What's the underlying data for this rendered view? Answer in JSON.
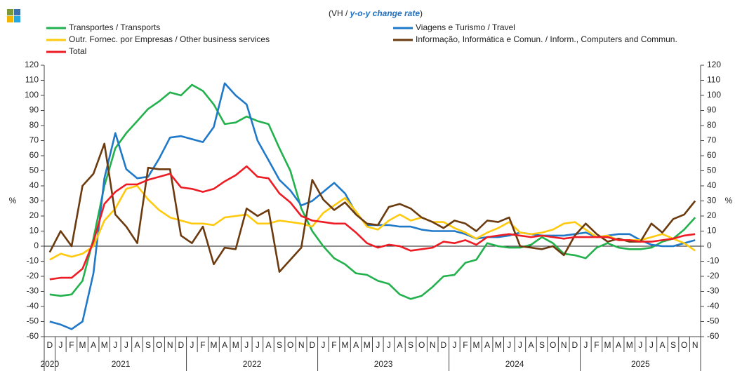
{
  "chart_data": {
    "type": "line",
    "subtitle": [
      "(VH / ",
      "y-o-y change rate",
      ")"
    ],
    "ylabel": "%",
    "months_by_year": [
      {
        "year": "2020",
        "months": [
          "D"
        ]
      },
      {
        "year": "2021",
        "months": [
          "J",
          "F",
          "M",
          "A",
          "M",
          "J",
          "J",
          "A",
          "S",
          "O",
          "N",
          "D"
        ]
      },
      {
        "year": "2022",
        "months": [
          "J",
          "F",
          "M",
          "A",
          "M",
          "J",
          "J",
          "A",
          "S",
          "O",
          "N",
          "D"
        ]
      },
      {
        "year": "2023",
        "months": [
          "J",
          "F",
          "M",
          "A",
          "M",
          "J",
          "J",
          "A",
          "S",
          "O",
          "N",
          "D"
        ]
      },
      {
        "year": "2024",
        "months": [
          "J",
          "F",
          "M",
          "A",
          "M",
          "J",
          "J",
          "A",
          "S",
          "O",
          "N",
          "D"
        ]
      },
      {
        "year": "2025",
        "months": [
          "J",
          "F",
          "M",
          "A",
          "M",
          "J",
          "J",
          "A",
          "S",
          "O",
          "N"
        ]
      }
    ],
    "ylim": [
      -60,
      120
    ],
    "yticks": [
      -60,
      -50,
      -40,
      -30,
      -20,
      -10,
      0,
      10,
      20,
      30,
      40,
      50,
      60,
      70,
      80,
      90,
      100,
      110,
      120
    ],
    "series": [
      {
        "name": "Transportes / Transports",
        "color": "#22b14c",
        "values": [
          -32,
          -33,
          -32,
          -23,
          5,
          40,
          65,
          75,
          83,
          91,
          96,
          102,
          100,
          107,
          103,
          94,
          81,
          82,
          86,
          83,
          81,
          65,
          50,
          25,
          10,
          0,
          -8,
          -12,
          -18,
          -19,
          -23,
          -25,
          -32,
          -35,
          -33,
          -27,
          -20,
          -19,
          -11,
          -9,
          2,
          0,
          -1,
          -1,
          1,
          6,
          2,
          -5,
          -6,
          -8,
          -1,
          2,
          -1,
          -2,
          -2,
          -1,
          3,
          5,
          11,
          19
        ]
      },
      {
        "name": "Viagens e Turismo / Travel",
        "color": "#1f78c8",
        "values": [
          -50,
          -52,
          -55,
          -50,
          -18,
          45,
          75,
          51,
          45,
          46,
          58,
          72,
          73,
          71,
          69,
          79,
          108,
          100,
          94,
          70,
          57,
          44,
          37,
          27,
          30,
          36,
          42,
          35,
          22,
          14,
          14,
          14,
          13,
          13,
          11,
          10,
          10,
          10,
          8,
          5,
          6,
          6,
          7,
          9,
          8,
          7,
          7,
          7,
          8,
          9,
          6,
          7,
          8,
          8,
          4,
          1,
          0,
          0,
          2,
          4
        ]
      },
      {
        "name": "Outr. Fornec. por Empresas / Other business services",
        "color": "#ffc90e",
        "values": [
          -9,
          -5,
          -7,
          -5,
          0,
          17,
          25,
          38,
          40,
          31,
          24,
          19,
          17,
          15,
          15,
          14,
          19,
          20,
          21,
          15,
          15,
          17,
          16,
          15,
          13,
          22,
          27,
          32,
          23,
          13,
          11,
          17,
          21,
          17,
          19,
          16,
          16,
          12,
          9,
          5,
          9,
          12,
          16,
          9,
          8,
          9,
          11,
          15,
          16,
          11,
          6,
          7,
          4,
          4,
          4,
          6,
          8,
          5,
          2,
          -3
        ]
      },
      {
        "name": "Informação, Informática e Comun. / Inform., Computers and Commun.",
        "color": "#6b3a0f",
        "values": [
          -4,
          10,
          0,
          40,
          48,
          68,
          21,
          13,
          2,
          52,
          51,
          51,
          7,
          2,
          13,
          -12,
          -1,
          -2,
          25,
          20,
          24,
          -17,
          -9,
          -1,
          44,
          31,
          24,
          29,
          21,
          15,
          14,
          26,
          28,
          25,
          19,
          16,
          12,
          17,
          15,
          10,
          17,
          16,
          19,
          0,
          -1,
          -2,
          0,
          -6,
          7,
          15,
          8,
          3,
          5,
          3,
          3,
          15,
          9,
          18,
          21,
          30
        ]
      },
      {
        "name": "Total",
        "color": "#ed1c24",
        "values": [
          -22,
          -21,
          -21,
          -15,
          3,
          28,
          36,
          41,
          41,
          44,
          46,
          48,
          39,
          38,
          36,
          38,
          43,
          47,
          53,
          46,
          45,
          35,
          29,
          20,
          17,
          16,
          15,
          15,
          9,
          2,
          -1,
          1,
          0,
          -3,
          -2,
          -1,
          3,
          2,
          4,
          1,
          6,
          7,
          8,
          7,
          6,
          7,
          6,
          5,
          6,
          6,
          6,
          6,
          4,
          4,
          3,
          3,
          4,
          5,
          7,
          8
        ]
      }
    ]
  }
}
